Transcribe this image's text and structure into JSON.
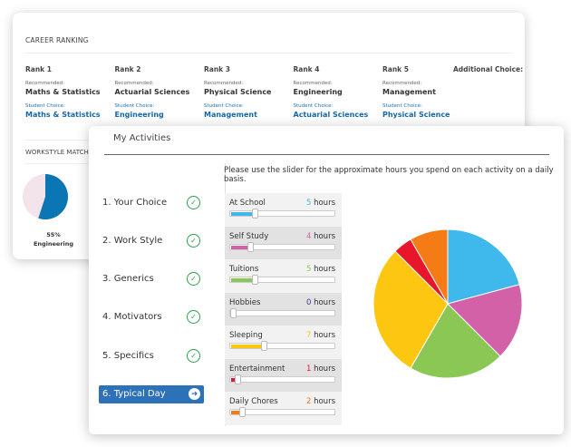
{
  "career": {
    "heading": "CAREER RANKING",
    "recommended_label": "Recommended:",
    "student_label": "Student Choice:",
    "ranks": [
      {
        "rank": "Rank 1",
        "recommended": "Maths & Statistics",
        "student": "Maths & Statistics"
      },
      {
        "rank": "Rank 2",
        "recommended": "Actuarial Sciences",
        "student": "Engineering"
      },
      {
        "rank": "Rank 3",
        "recommended": "Physical Science",
        "student": "Management"
      },
      {
        "rank": "Rank 4",
        "recommended": "Engineering",
        "student": "Actuarial Sciences"
      },
      {
        "rank": "Rank 5",
        "recommended": "Management",
        "student": "Physical Science"
      }
    ],
    "additional": "Additional Choice:"
  },
  "workstyle": {
    "heading": "WORKSTYLE MATCHES",
    "percent": "55%",
    "percent_value": 55,
    "career": "Engineering",
    "color": "#0a76b3"
  },
  "activities": {
    "title": "My Activities",
    "instruction": "Please use the slider for the approximate hours you spend on each activity on a daily basis.",
    "steps": [
      {
        "label": "1. Your Choice"
      },
      {
        "label": "2. Work Style"
      },
      {
        "label": "3. Generics"
      },
      {
        "label": "4. Motivators"
      },
      {
        "label": "5. Specifics"
      },
      {
        "label": "6. Typical Day",
        "active": true
      }
    ],
    "max_hours": 24,
    "items": [
      {
        "name": "At School",
        "hours": 5,
        "text": "5",
        "unit": "hours",
        "color": "#3fb8ec"
      },
      {
        "name": "Self Study",
        "hours": 4,
        "text": "4",
        "unit": "hours",
        "color": "#d261a8"
      },
      {
        "name": "Tuitions",
        "hours": 5,
        "text": "5",
        "unit": "hours",
        "color": "#8bc755"
      },
      {
        "name": "Hobbies",
        "hours": 0,
        "text": "0",
        "unit": "hours",
        "color": "#3a3a9a"
      },
      {
        "name": "Sleeping",
        "hours": 7,
        "text": "7",
        "unit": "hours",
        "color": "#fdc711"
      },
      {
        "name": "Entertainment",
        "hours": 1,
        "text": "1",
        "unit": "hours",
        "color": "#e8162a"
      },
      {
        "name": "Daily Chores",
        "hours": 2,
        "text": "2",
        "unit": "hours",
        "color": "#f47b16"
      }
    ]
  }
}
